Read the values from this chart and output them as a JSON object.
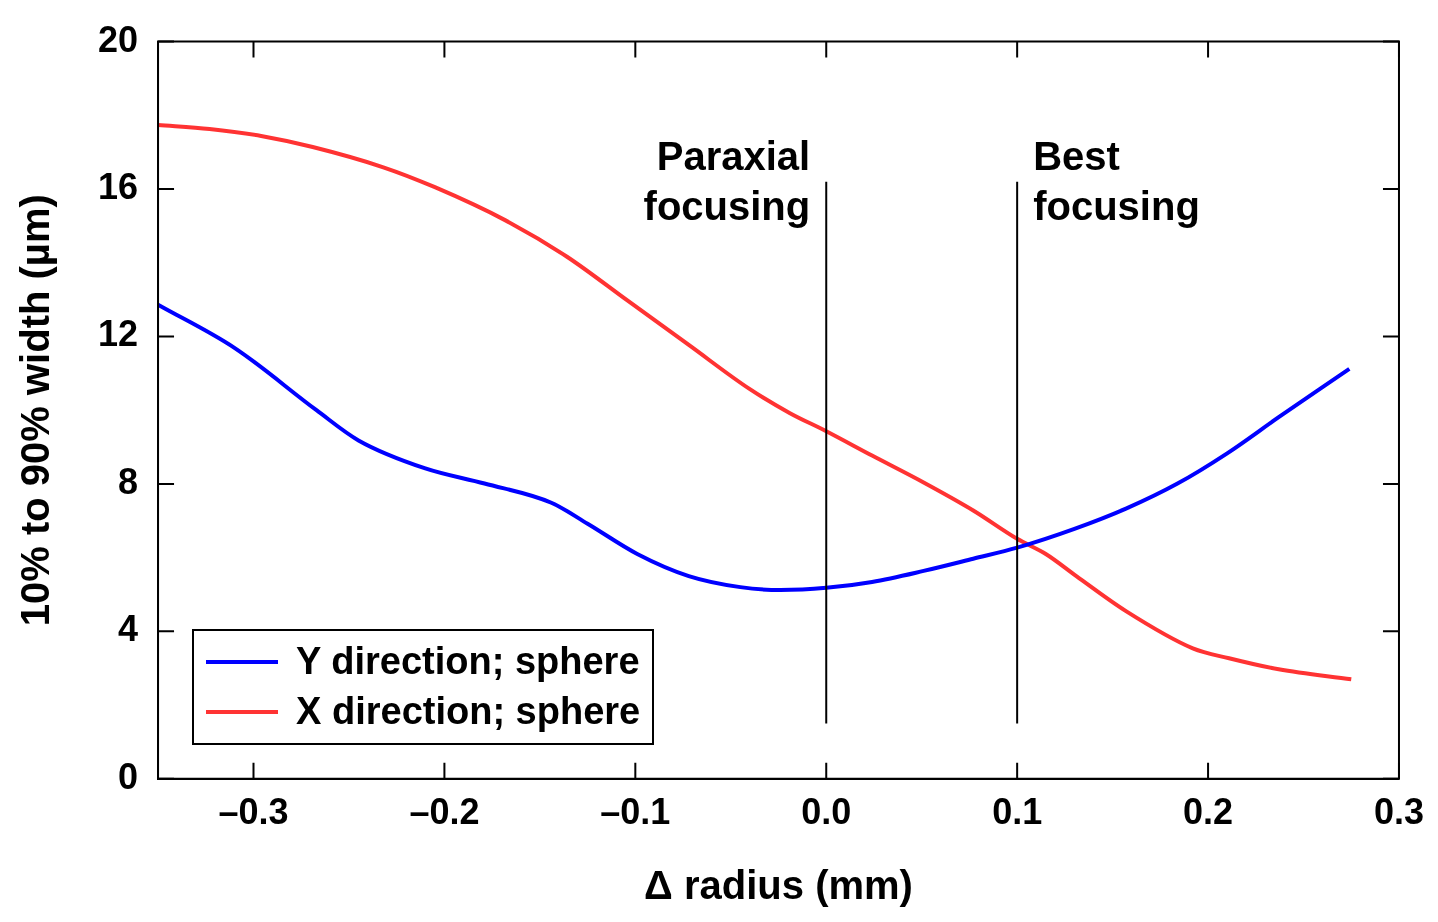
{
  "chart_data": {
    "type": "line",
    "xlabel": "Δ radius (mm)",
    "ylabel": "10% to 90% width (µm)",
    "xlim": [
      -0.35,
      0.3
    ],
    "ylim": [
      0,
      20
    ],
    "xticks": [
      {
        "value": -0.3,
        "label": "–0.3"
      },
      {
        "value": -0.2,
        "label": "–0.2"
      },
      {
        "value": -0.1,
        "label": "–0.1"
      },
      {
        "value": 0,
        "label": "0.0"
      },
      {
        "value": 0.1,
        "label": "0.1"
      },
      {
        "value": 0.2,
        "label": "0.2"
      },
      {
        "value": 0.3,
        "label": "0.3"
      }
    ],
    "yticks": [
      0,
      4,
      8,
      12,
      16,
      20
    ],
    "grid": false,
    "legend": "bottom left",
    "marker": "none",
    "line_style": "solid",
    "series": [
      {
        "name": "Y direction; sphere",
        "color": "#0000ff",
        "x": [
          -0.35,
          -0.31,
          -0.267,
          -0.245,
          -0.21,
          -0.179,
          -0.144,
          -0.125,
          -0.099,
          -0.072,
          -0.045,
          -0.024,
          0,
          0.024,
          0.051,
          0.077,
          0.1,
          0.13,
          0.157,
          0.184,
          0.21,
          0.237,
          0.274
        ],
        "values": [
          12.86,
          11.69,
          10.0,
          9.18,
          8.42,
          8.01,
          7.49,
          6.92,
          6.1,
          5.5,
          5.2,
          5.12,
          5.18,
          5.34,
          5.64,
          5.97,
          6.27,
          6.78,
          7.33,
          8.01,
          8.83,
          9.81,
          11.12
        ]
      },
      {
        "name": "X direction; sphere",
        "color": "#ff3333",
        "x": [
          -0.35,
          -0.323,
          -0.296,
          -0.269,
          -0.232,
          -0.205,
          -0.168,
          -0.136,
          -0.104,
          -0.072,
          -0.04,
          -0.019,
          0,
          0.024,
          0.051,
          0.077,
          0.1,
          0.115,
          0.131,
          0.157,
          0.192,
          0.211,
          0.237,
          0.275
        ],
        "values": [
          17.74,
          17.63,
          17.44,
          17.14,
          16.59,
          16.05,
          15.15,
          14.17,
          12.97,
          11.77,
          10.57,
          9.92,
          9.43,
          8.77,
          8.04,
          7.28,
          6.51,
          6.1,
          5.5,
          4.55,
          3.54,
          3.27,
          2.97,
          2.7
        ]
      }
    ],
    "ref_lines": [
      {
        "axis": "x",
        "value": 0,
        "label": "Paraxial\nfocusing",
        "color": "#000000"
      },
      {
        "axis": "x",
        "value": 0.1,
        "label": "Best\nfocusing",
        "color": "#000000"
      }
    ]
  }
}
